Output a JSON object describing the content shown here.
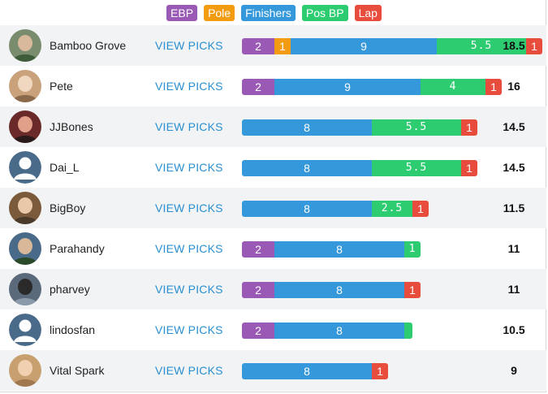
{
  "colors": {
    "ebp": "#9b59b6",
    "pole": "#f39c12",
    "finishers": "#3498db",
    "posbp": "#2ecc71",
    "lap": "#e74c3c",
    "link": "#2a8fd0"
  },
  "legend": [
    {
      "key": "ebp",
      "label": "EBP"
    },
    {
      "key": "pole",
      "label": "Pole"
    },
    {
      "key": "finishers",
      "label": "Finishers"
    },
    {
      "key": "posbp",
      "label": "Pos BP"
    },
    {
      "key": "lap",
      "label": "Lap"
    }
  ],
  "view_label": "VIEW PICKS",
  "rows": [
    {
      "name": "Bamboo Grove",
      "avatar": "photo",
      "total": "18.5",
      "segments": [
        {
          "key": "ebp",
          "value": 2,
          "label": "2"
        },
        {
          "key": "pole",
          "value": 1,
          "label": "1"
        },
        {
          "key": "finishers",
          "value": 9,
          "label": "9"
        },
        {
          "key": "posbp",
          "value": 5.5,
          "label": "5.5"
        },
        {
          "key": "lap",
          "value": 1,
          "label": "1"
        }
      ]
    },
    {
      "name": "Pete",
      "avatar": "photo",
      "total": "16",
      "segments": [
        {
          "key": "ebp",
          "value": 2,
          "label": "2"
        },
        {
          "key": "finishers",
          "value": 9,
          "label": "9"
        },
        {
          "key": "posbp",
          "value": 4,
          "label": "4"
        },
        {
          "key": "lap",
          "value": 1,
          "label": "1"
        }
      ]
    },
    {
      "name": "JJBones",
      "avatar": "photo",
      "total": "14.5",
      "segments": [
        {
          "key": "finishers",
          "value": 8,
          "label": "8"
        },
        {
          "key": "posbp",
          "value": 5.5,
          "label": "5.5"
        },
        {
          "key": "lap",
          "value": 1,
          "label": "1"
        }
      ]
    },
    {
      "name": "Dai_L",
      "avatar": "default",
      "total": "14.5",
      "segments": [
        {
          "key": "finishers",
          "value": 8,
          "label": "8"
        },
        {
          "key": "posbp",
          "value": 5.5,
          "label": "5.5"
        },
        {
          "key": "lap",
          "value": 1,
          "label": "1"
        }
      ]
    },
    {
      "name": "BigBoy",
      "avatar": "photo",
      "total": "11.5",
      "segments": [
        {
          "key": "finishers",
          "value": 8,
          "label": "8"
        },
        {
          "key": "posbp",
          "value": 2.5,
          "label": "2.5"
        },
        {
          "key": "lap",
          "value": 1,
          "label": "1"
        }
      ]
    },
    {
      "name": "Parahandy",
      "avatar": "photo",
      "total": "11",
      "segments": [
        {
          "key": "ebp",
          "value": 2,
          "label": "2"
        },
        {
          "key": "finishers",
          "value": 8,
          "label": "8"
        },
        {
          "key": "posbp",
          "value": 1,
          "label": "1"
        }
      ]
    },
    {
      "name": "pharvey",
      "avatar": "photo",
      "total": "11",
      "segments": [
        {
          "key": "ebp",
          "value": 2,
          "label": "2"
        },
        {
          "key": "finishers",
          "value": 8,
          "label": "8"
        },
        {
          "key": "lap",
          "value": 1,
          "label": "1"
        }
      ]
    },
    {
      "name": "lindosfan",
      "avatar": "default",
      "total": "10.5",
      "segments": [
        {
          "key": "ebp",
          "value": 2,
          "label": "2"
        },
        {
          "key": "finishers",
          "value": 8,
          "label": "8"
        },
        {
          "key": "posbp",
          "value": 0.5,
          "label": ""
        }
      ]
    },
    {
      "name": "Vital Spark",
      "avatar": "photo",
      "total": "9",
      "segments": [
        {
          "key": "finishers",
          "value": 8,
          "label": "8"
        },
        {
          "key": "lap",
          "value": 1,
          "label": "1"
        }
      ]
    }
  ]
}
